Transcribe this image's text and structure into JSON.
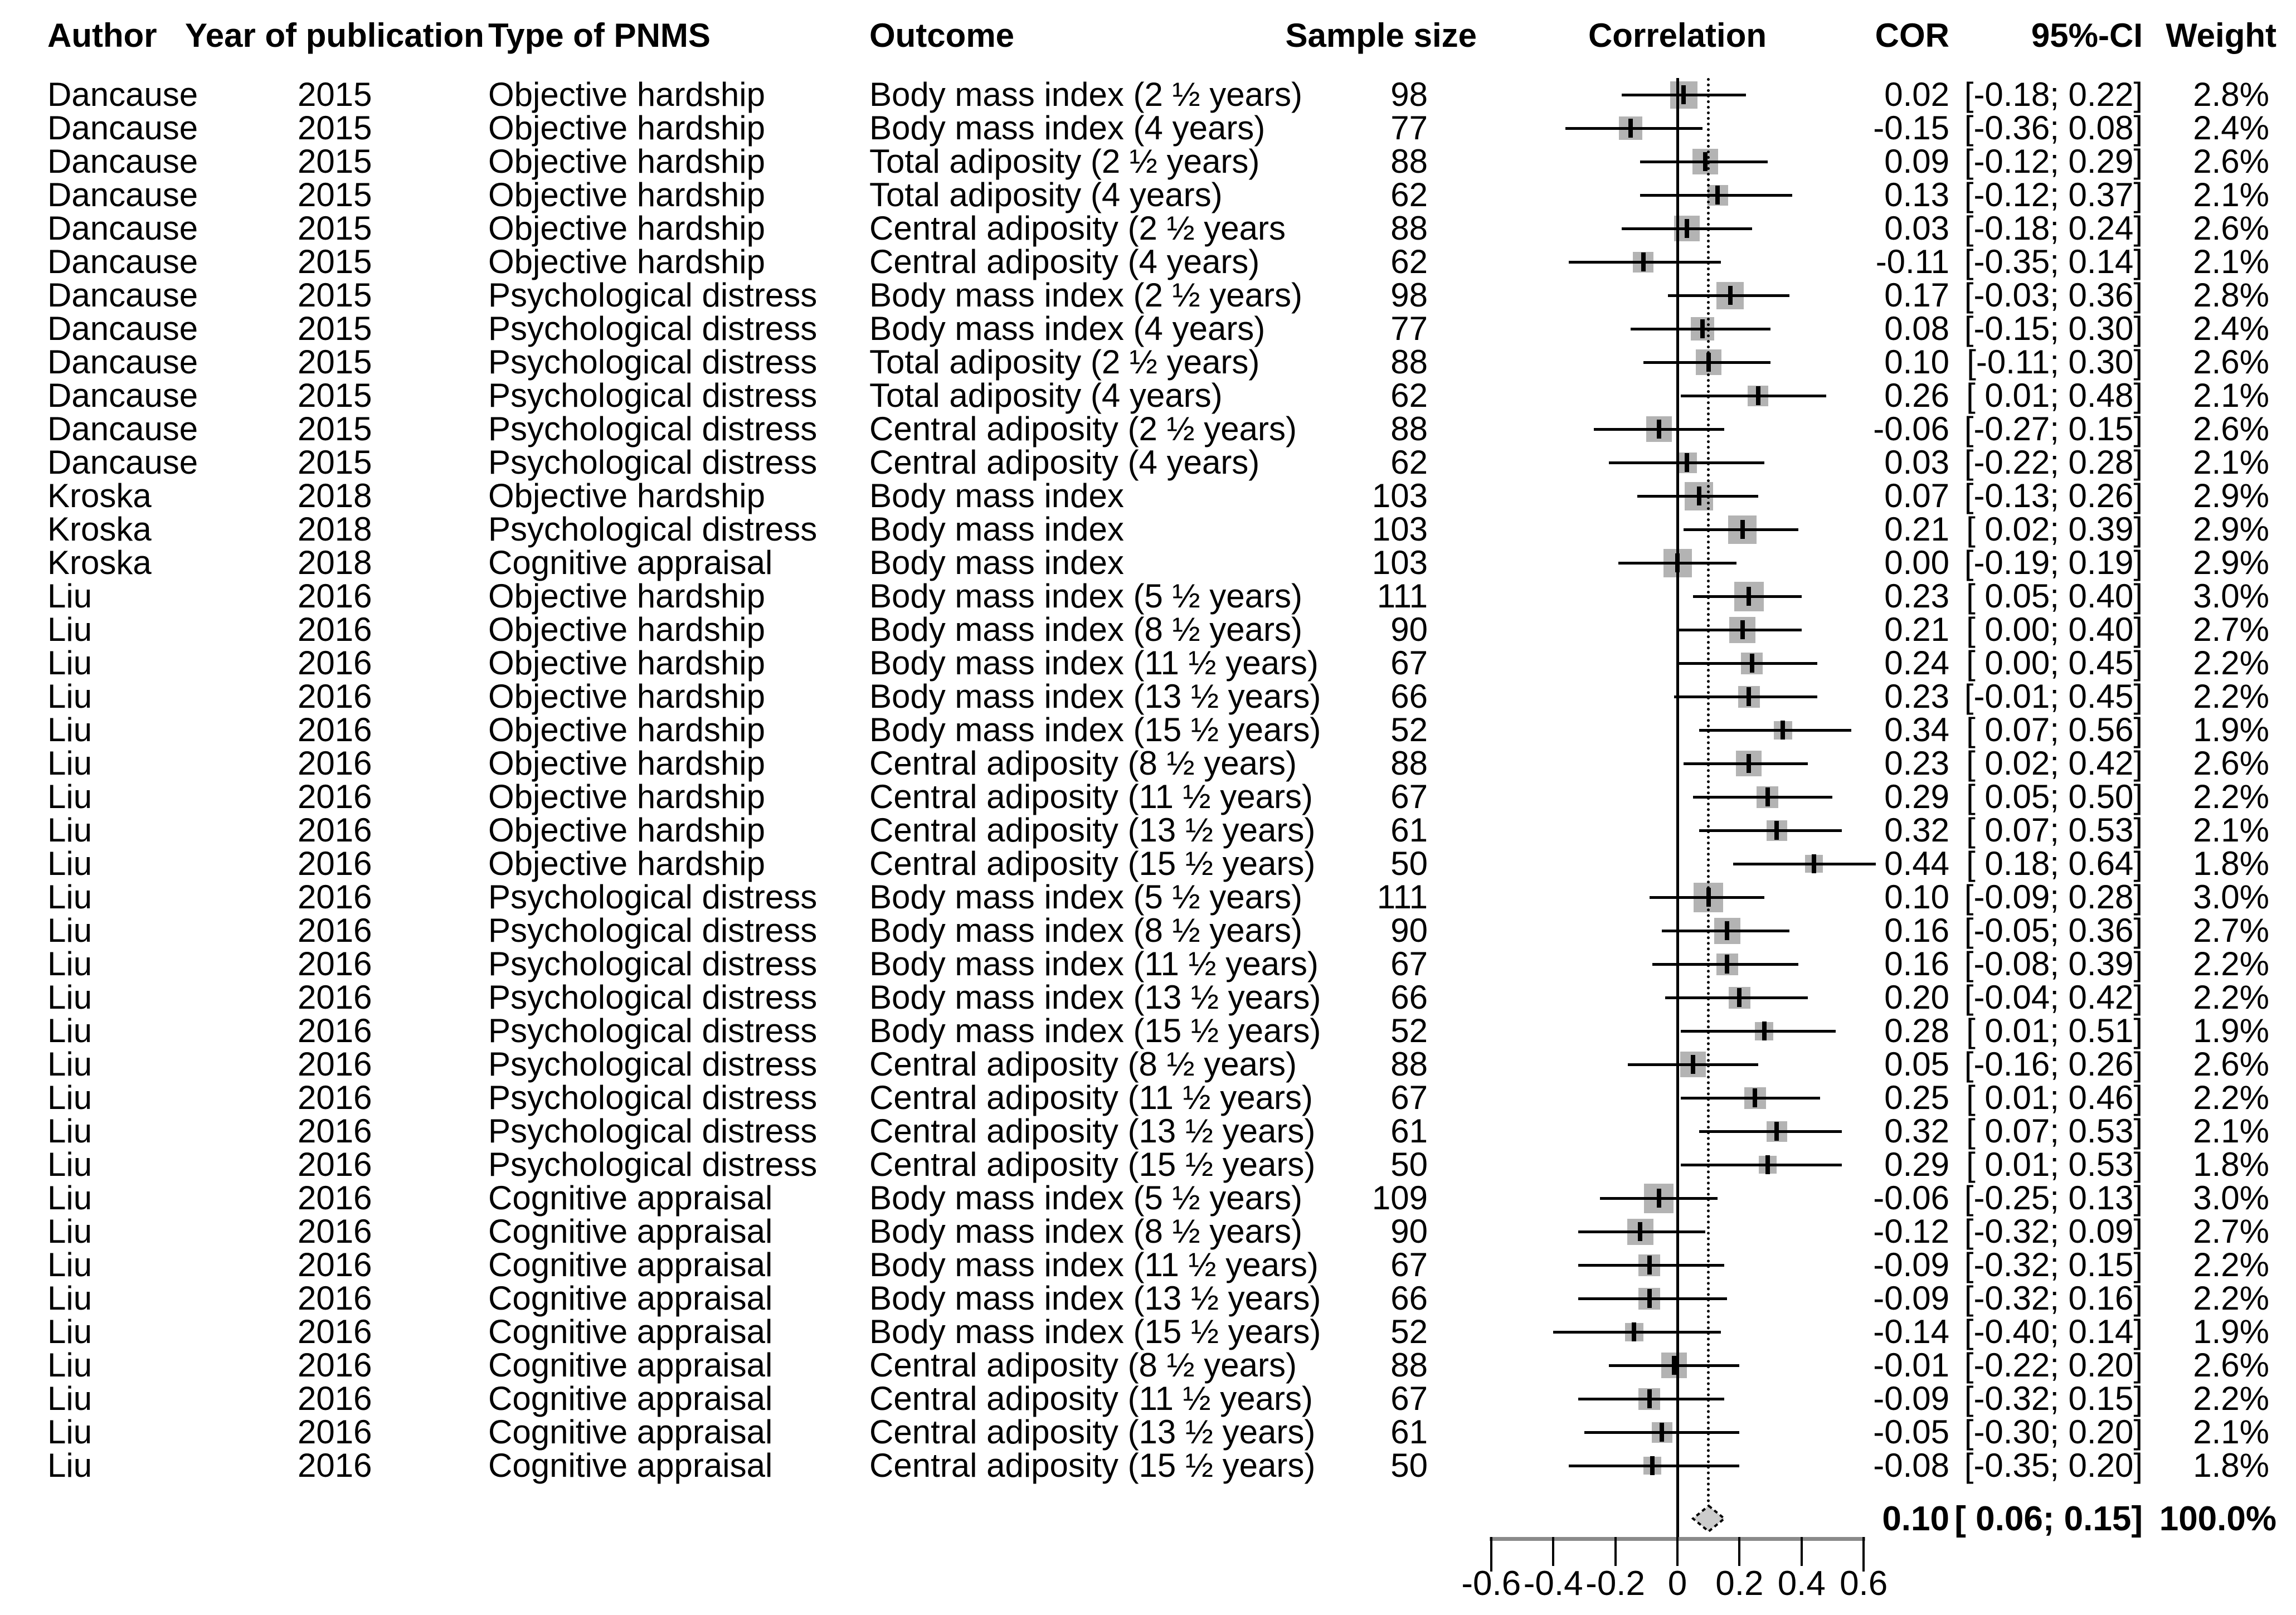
{
  "headers": {
    "author": "Author",
    "year": "Year of publication",
    "pnms": "Type of PNMS",
    "outcome": "Outcome",
    "sample": "Sample size",
    "correlation": "Correlation",
    "cor": "COR",
    "ci": "95%-CI",
    "weight": "Weight"
  },
  "colors": {
    "marker_fill": "#b3b3b3",
    "diamond_fill": "#cccccc",
    "axis_line": "#8a8a8a",
    "line": "#000000"
  },
  "chart_data": {
    "type": "forest",
    "title": "",
    "xlabel": "",
    "xlim": [
      -0.66,
      0.66
    ],
    "zero_line": 0,
    "ref_line": 0.1,
    "grid": false,
    "x_ticks": [
      -0.6,
      -0.4,
      -0.2,
      0,
      0.2,
      0.4,
      0.6
    ],
    "x_tick_labels": [
      "-0.6",
      "-0.4",
      "-0.2",
      "0",
      "0.2",
      "0.4",
      "0.6"
    ],
    "rows": [
      {
        "author": "Dancause",
        "year": "2015",
        "pnms": "Objective hardship",
        "outcome": "Body mass index (2 ½ years)",
        "n": "98",
        "cor_label": "0.02",
        "ci_label": "[-0.18; 0.22]",
        "weight_label": "2.8%",
        "cor": 0.02,
        "low": -0.18,
        "high": 0.22,
        "weight": 2.8
      },
      {
        "author": "Dancause",
        "year": "2015",
        "pnms": "Objective hardship",
        "outcome": "Body mass index (4 years)",
        "n": "77",
        "cor_label": "-0.15",
        "ci_label": "[-0.36; 0.08]",
        "weight_label": "2.4%",
        "cor": -0.15,
        "low": -0.36,
        "high": 0.08,
        "weight": 2.4
      },
      {
        "author": "Dancause",
        "year": "2015",
        "pnms": "Objective hardship",
        "outcome": "Total adiposity (2 ½ years)",
        "n": "88",
        "cor_label": "0.09",
        "ci_label": "[-0.12; 0.29]",
        "weight_label": "2.6%",
        "cor": 0.09,
        "low": -0.12,
        "high": 0.29,
        "weight": 2.6
      },
      {
        "author": "Dancause",
        "year": "2015",
        "pnms": "Objective hardship",
        "outcome": "Total adiposity (4 years)",
        "n": "62",
        "cor_label": "0.13",
        "ci_label": "[-0.12; 0.37]",
        "weight_label": "2.1%",
        "cor": 0.13,
        "low": -0.12,
        "high": 0.37,
        "weight": 2.1
      },
      {
        "author": "Dancause",
        "year": "2015",
        "pnms": "Objective hardship",
        "outcome": "Central adiposity (2 ½ years",
        "n": "88",
        "cor_label": "0.03",
        "ci_label": "[-0.18; 0.24]",
        "weight_label": "2.6%",
        "cor": 0.03,
        "low": -0.18,
        "high": 0.24,
        "weight": 2.6
      },
      {
        "author": "Dancause",
        "year": "2015",
        "pnms": "Objective hardship",
        "outcome": "Central adiposity (4 years)",
        "n": "62",
        "cor_label": "-0.11",
        "ci_label": "[-0.35; 0.14]",
        "weight_label": "2.1%",
        "cor": -0.11,
        "low": -0.35,
        "high": 0.14,
        "weight": 2.1
      },
      {
        "author": "Dancause",
        "year": "2015",
        "pnms": "Psychological distress",
        "outcome": "Body mass index (2 ½ years)",
        "n": "98",
        "cor_label": "0.17",
        "ci_label": "[-0.03; 0.36]",
        "weight_label": "2.8%",
        "cor": 0.17,
        "low": -0.03,
        "high": 0.36,
        "weight": 2.8
      },
      {
        "author": "Dancause",
        "year": "2015",
        "pnms": "Psychological distress",
        "outcome": "Body mass index (4 years)",
        "n": "77",
        "cor_label": "0.08",
        "ci_label": "[-0.15; 0.30]",
        "weight_label": "2.4%",
        "cor": 0.08,
        "low": -0.15,
        "high": 0.3,
        "weight": 2.4
      },
      {
        "author": "Dancause",
        "year": "2015",
        "pnms": "Psychological distress",
        "outcome": "Total adiposity (2 ½ years)",
        "n": "88",
        "cor_label": "0.10",
        "ci_label": "[-0.11; 0.30]",
        "weight_label": "2.6%",
        "cor": 0.1,
        "low": -0.11,
        "high": 0.3,
        "weight": 2.6
      },
      {
        "author": "Dancause",
        "year": "2015",
        "pnms": "Psychological distress",
        "outcome": "Total adiposity (4 years)",
        "n": "62",
        "cor_label": "0.26",
        "ci_label": "[ 0.01; 0.48]",
        "weight_label": "2.1%",
        "cor": 0.26,
        "low": 0.01,
        "high": 0.48,
        "weight": 2.1
      },
      {
        "author": "Dancause",
        "year": "2015",
        "pnms": "Psychological distress",
        "outcome": "Central adiposity (2 ½ years)",
        "n": "88",
        "cor_label": "-0.06",
        "ci_label": "[-0.27; 0.15]",
        "weight_label": "2.6%",
        "cor": -0.06,
        "low": -0.27,
        "high": 0.15,
        "weight": 2.6
      },
      {
        "author": "Dancause",
        "year": "2015",
        "pnms": "Psychological distress",
        "outcome": "Central adiposity (4 years)",
        "n": "62",
        "cor_label": "0.03",
        "ci_label": "[-0.22; 0.28]",
        "weight_label": "2.1%",
        "cor": 0.03,
        "low": -0.22,
        "high": 0.28,
        "weight": 2.1
      },
      {
        "author": "Kroska",
        "year": "2018",
        "pnms": "Objective hardship",
        "outcome": "Body mass index",
        "n": "103",
        "cor_label": "0.07",
        "ci_label": "[-0.13; 0.26]",
        "weight_label": "2.9%",
        "cor": 0.07,
        "low": -0.13,
        "high": 0.26,
        "weight": 2.9
      },
      {
        "author": "Kroska",
        "year": "2018",
        "pnms": "Psychological distress",
        "outcome": "Body mass index",
        "n": "103",
        "cor_label": "0.21",
        "ci_label": "[ 0.02; 0.39]",
        "weight_label": "2.9%",
        "cor": 0.21,
        "low": 0.02,
        "high": 0.39,
        "weight": 2.9
      },
      {
        "author": "Kroska",
        "year": "2018",
        "pnms": "Cognitive appraisal",
        "outcome": "Body mass index",
        "n": "103",
        "cor_label": "0.00",
        "ci_label": "[-0.19; 0.19]",
        "weight_label": "2.9%",
        "cor": 0.0,
        "low": -0.19,
        "high": 0.19,
        "weight": 2.9
      },
      {
        "author": "Liu",
        "year": "2016",
        "pnms": "Objective hardship",
        "outcome": "Body mass index (5 ½ years)",
        "n": "111",
        "cor_label": "0.23",
        "ci_label": "[ 0.05; 0.40]",
        "weight_label": "3.0%",
        "cor": 0.23,
        "low": 0.05,
        "high": 0.4,
        "weight": 3.0
      },
      {
        "author": "Liu",
        "year": "2016",
        "pnms": "Objective hardship",
        "outcome": "Body mass index (8 ½ years)",
        "n": "90",
        "cor_label": "0.21",
        "ci_label": "[ 0.00; 0.40]",
        "weight_label": "2.7%",
        "cor": 0.21,
        "low": 0.0,
        "high": 0.4,
        "weight": 2.7
      },
      {
        "author": "Liu",
        "year": "2016",
        "pnms": "Objective hardship",
        "outcome": "Body mass index (11 ½ years)",
        "n": "67",
        "cor_label": "0.24",
        "ci_label": "[ 0.00; 0.45]",
        "weight_label": "2.2%",
        "cor": 0.24,
        "low": 0.0,
        "high": 0.45,
        "weight": 2.2
      },
      {
        "author": "Liu",
        "year": "2016",
        "pnms": "Objective hardship",
        "outcome": "Body mass index (13 ½ years)",
        "n": "66",
        "cor_label": "0.23",
        "ci_label": "[-0.01; 0.45]",
        "weight_label": "2.2%",
        "cor": 0.23,
        "low": -0.01,
        "high": 0.45,
        "weight": 2.2
      },
      {
        "author": "Liu",
        "year": "2016",
        "pnms": "Objective hardship",
        "outcome": "Body mass index (15 ½ years)",
        "n": "52",
        "cor_label": "0.34",
        "ci_label": "[ 0.07; 0.56]",
        "weight_label": "1.9%",
        "cor": 0.34,
        "low": 0.07,
        "high": 0.56,
        "weight": 1.9
      },
      {
        "author": "Liu",
        "year": "2016",
        "pnms": "Objective hardship",
        "outcome": "Central adiposity (8 ½ years)",
        "n": "88",
        "cor_label": "0.23",
        "ci_label": "[ 0.02; 0.42]",
        "weight_label": "2.6%",
        "cor": 0.23,
        "low": 0.02,
        "high": 0.42,
        "weight": 2.6
      },
      {
        "author": "Liu",
        "year": "2016",
        "pnms": "Objective hardship",
        "outcome": "Central adiposity (11 ½ years)",
        "n": "67",
        "cor_label": "0.29",
        "ci_label": "[ 0.05; 0.50]",
        "weight_label": "2.2%",
        "cor": 0.29,
        "low": 0.05,
        "high": 0.5,
        "weight": 2.2
      },
      {
        "author": "Liu",
        "year": "2016",
        "pnms": "Objective hardship",
        "outcome": "Central adiposity (13 ½ years)",
        "n": "61",
        "cor_label": "0.32",
        "ci_label": "[ 0.07; 0.53]",
        "weight_label": "2.1%",
        "cor": 0.32,
        "low": 0.07,
        "high": 0.53,
        "weight": 2.1
      },
      {
        "author": "Liu",
        "year": "2016",
        "pnms": "Objective hardship",
        "outcome": "Central adiposity (15 ½ years)",
        "n": "50",
        "cor_label": "0.44",
        "ci_label": "[ 0.18; 0.64]",
        "weight_label": "1.8%",
        "cor": 0.44,
        "low": 0.18,
        "high": 0.64,
        "weight": 1.8
      },
      {
        "author": "Liu",
        "year": "2016",
        "pnms": "Psychological distress",
        "outcome": "Body mass index (5 ½ years)",
        "n": "111",
        "cor_label": "0.10",
        "ci_label": "[-0.09; 0.28]",
        "weight_label": "3.0%",
        "cor": 0.1,
        "low": -0.09,
        "high": 0.28,
        "weight": 3.0
      },
      {
        "author": "Liu",
        "year": "2016",
        "pnms": "Psychological distress",
        "outcome": "Body mass index (8 ½ years)",
        "n": "90",
        "cor_label": "0.16",
        "ci_label": "[-0.05; 0.36]",
        "weight_label": "2.7%",
        "cor": 0.16,
        "low": -0.05,
        "high": 0.36,
        "weight": 2.7
      },
      {
        "author": "Liu",
        "year": "2016",
        "pnms": "Psychological distress",
        "outcome": "Body mass index (11 ½ years)",
        "n": "67",
        "cor_label": "0.16",
        "ci_label": "[-0.08; 0.39]",
        "weight_label": "2.2%",
        "cor": 0.16,
        "low": -0.08,
        "high": 0.39,
        "weight": 2.2
      },
      {
        "author": "Liu",
        "year": "2016",
        "pnms": "Psychological distress",
        "outcome": "Body mass index (13 ½ years)",
        "n": "66",
        "cor_label": "0.20",
        "ci_label": "[-0.04; 0.42]",
        "weight_label": "2.2%",
        "cor": 0.2,
        "low": -0.04,
        "high": 0.42,
        "weight": 2.2
      },
      {
        "author": "Liu",
        "year": "2016",
        "pnms": "Psychological distress",
        "outcome": "Body mass index (15 ½ years)",
        "n": "52",
        "cor_label": "0.28",
        "ci_label": "[ 0.01; 0.51]",
        "weight_label": "1.9%",
        "cor": 0.28,
        "low": 0.01,
        "high": 0.51,
        "weight": 1.9
      },
      {
        "author": "Liu",
        "year": "2016",
        "pnms": "Psychological distress",
        "outcome": "Central adiposity (8 ½ years)",
        "n": "88",
        "cor_label": "0.05",
        "ci_label": "[-0.16; 0.26]",
        "weight_label": "2.6%",
        "cor": 0.05,
        "low": -0.16,
        "high": 0.26,
        "weight": 2.6
      },
      {
        "author": "Liu",
        "year": "2016",
        "pnms": "Psychological distress",
        "outcome": "Central adiposity (11 ½ years)",
        "n": "67",
        "cor_label": "0.25",
        "ci_label": "[ 0.01; 0.46]",
        "weight_label": "2.2%",
        "cor": 0.25,
        "low": 0.01,
        "high": 0.46,
        "weight": 2.2
      },
      {
        "author": "Liu",
        "year": "2016",
        "pnms": "Psychological distress",
        "outcome": "Central adiposity (13 ½ years)",
        "n": "61",
        "cor_label": "0.32",
        "ci_label": "[ 0.07; 0.53]",
        "weight_label": "2.1%",
        "cor": 0.32,
        "low": 0.07,
        "high": 0.53,
        "weight": 2.1
      },
      {
        "author": "Liu",
        "year": "2016",
        "pnms": "Psychological distress",
        "outcome": "Central adiposity (15 ½ years)",
        "n": "50",
        "cor_label": "0.29",
        "ci_label": "[ 0.01; 0.53]",
        "weight_label": "1.8%",
        "cor": 0.29,
        "low": 0.01,
        "high": 0.53,
        "weight": 1.8
      },
      {
        "author": "Liu",
        "year": "2016",
        "pnms": "Cognitive appraisal",
        "outcome": "Body mass index (5 ½ years)",
        "n": "109",
        "cor_label": "-0.06",
        "ci_label": "[-0.25; 0.13]",
        "weight_label": "3.0%",
        "cor": -0.06,
        "low": -0.25,
        "high": 0.13,
        "weight": 3.0
      },
      {
        "author": "Liu",
        "year": "2016",
        "pnms": "Cognitive appraisal",
        "outcome": "Body mass index (8 ½ years)",
        "n": "90",
        "cor_label": "-0.12",
        "ci_label": "[-0.32; 0.09]",
        "weight_label": "2.7%",
        "cor": -0.12,
        "low": -0.32,
        "high": 0.09,
        "weight": 2.7
      },
      {
        "author": "Liu",
        "year": "2016",
        "pnms": "Cognitive appraisal",
        "outcome": "Body mass index (11 ½ years)",
        "n": "67",
        "cor_label": "-0.09",
        "ci_label": "[-0.32; 0.15]",
        "weight_label": "2.2%",
        "cor": -0.09,
        "low": -0.32,
        "high": 0.15,
        "weight": 2.2
      },
      {
        "author": "Liu",
        "year": "2016",
        "pnms": "Cognitive appraisal",
        "outcome": "Body mass index (13 ½ years)",
        "n": "66",
        "cor_label": "-0.09",
        "ci_label": "[-0.32; 0.16]",
        "weight_label": "2.2%",
        "cor": -0.09,
        "low": -0.32,
        "high": 0.16,
        "weight": 2.2
      },
      {
        "author": "Liu",
        "year": "2016",
        "pnms": "Cognitive appraisal",
        "outcome": "Body mass index (15 ½ years)",
        "n": "52",
        "cor_label": "-0.14",
        "ci_label": "[-0.40; 0.14]",
        "weight_label": "1.9%",
        "cor": -0.14,
        "low": -0.4,
        "high": 0.14,
        "weight": 1.9
      },
      {
        "author": "Liu",
        "year": "2016",
        "pnms": "Cognitive appraisal",
        "outcome": "Central adiposity (8 ½ years)",
        "n": "88",
        "cor_label": "-0.01",
        "ci_label": "[-0.22; 0.20]",
        "weight_label": "2.6%",
        "cor": -0.01,
        "low": -0.22,
        "high": 0.2,
        "weight": 2.6
      },
      {
        "author": "Liu",
        "year": "2016",
        "pnms": "Cognitive appraisal",
        "outcome": "Central adiposity (11 ½ years)",
        "n": "67",
        "cor_label": "-0.09",
        "ci_label": "[-0.32; 0.15]",
        "weight_label": "2.2%",
        "cor": -0.09,
        "low": -0.32,
        "high": 0.15,
        "weight": 2.2
      },
      {
        "author": "Liu",
        "year": "2016",
        "pnms": "Cognitive appraisal",
        "outcome": "Central adiposity (13 ½ years)",
        "n": "61",
        "cor_label": "-0.05",
        "ci_label": "[-0.30; 0.20]",
        "weight_label": "2.1%",
        "cor": -0.05,
        "low": -0.3,
        "high": 0.2,
        "weight": 2.1
      },
      {
        "author": "Liu",
        "year": "2016",
        "pnms": "Cognitive appraisal",
        "outcome": "Central adiposity (15 ½ years)",
        "n": "50",
        "cor_label": "-0.08",
        "ci_label": "[-0.35; 0.20]",
        "weight_label": "1.8%",
        "cor": -0.08,
        "low": -0.35,
        "high": 0.2,
        "weight": 1.8
      }
    ],
    "summary": {
      "cor_label": "0.10",
      "ci_label": "[ 0.06; 0.15]",
      "weight_label": "100.0%",
      "cor": 0.1,
      "low": 0.06,
      "high": 0.15
    }
  }
}
